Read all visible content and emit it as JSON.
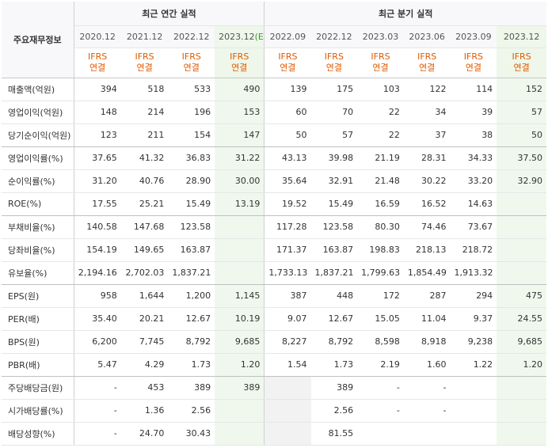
{
  "header": {
    "row_label": "주요재무정보",
    "annual_group": "최근 연간 실적",
    "quarter_group": "최근 분기 실적",
    "annual_periods": [
      "2020.12",
      "2021.12",
      "2022.12",
      "2023.12"
    ],
    "estimate_mark": "(E)",
    "quarter_periods": [
      "2022.09",
      "2022.12",
      "2023.03",
      "2023.06",
      "2023.09",
      "2023.12"
    ],
    "ifrs_line1": "IFRS",
    "ifrs_line2": "연결"
  },
  "rows": [
    {
      "label": "매출액(억원)",
      "values": [
        "394",
        "518",
        "533",
        "490",
        "139",
        "175",
        "103",
        "122",
        "114",
        "152"
      ]
    },
    {
      "label": "영업이익(억원)",
      "values": [
        "148",
        "214",
        "196",
        "153",
        "60",
        "70",
        "22",
        "34",
        "39",
        "57"
      ]
    },
    {
      "label": "당기순이익(억원)",
      "values": [
        "123",
        "211",
        "154",
        "147",
        "50",
        "57",
        "22",
        "37",
        "38",
        "50"
      ]
    },
    {
      "label": "영업이익률(%)",
      "values": [
        "37.65",
        "41.32",
        "36.83",
        "31.22",
        "43.13",
        "39.98",
        "21.19",
        "28.31",
        "34.33",
        "37.50"
      ]
    },
    {
      "label": "순이익률(%)",
      "values": [
        "31.20",
        "40.76",
        "28.90",
        "30.00",
        "35.64",
        "32.91",
        "21.48",
        "30.22",
        "33.20",
        "32.90"
      ]
    },
    {
      "label": "ROE(%)",
      "values": [
        "17.55",
        "25.21",
        "15.49",
        "13.19",
        "19.52",
        "15.49",
        "16.59",
        "16.52",
        "14.63",
        ""
      ]
    },
    {
      "label": "부채비율(%)",
      "values": [
        "140.58",
        "147.68",
        "123.58",
        "",
        "117.28",
        "123.58",
        "80.30",
        "74.46",
        "73.67",
        ""
      ]
    },
    {
      "label": "당좌비율(%)",
      "values": [
        "154.19",
        "149.65",
        "163.87",
        "",
        "171.37",
        "163.87",
        "198.83",
        "218.13",
        "218.72",
        ""
      ]
    },
    {
      "label": "유보율(%)",
      "values": [
        "2,194.16",
        "2,702.03",
        "1,837.21",
        "",
        "1,733.13",
        "1,837.21",
        "1,799.63",
        "1,854.49",
        "1,913.32",
        ""
      ]
    },
    {
      "label": "EPS(원)",
      "values": [
        "958",
        "1,644",
        "1,200",
        "1,145",
        "387",
        "448",
        "172",
        "287",
        "294",
        "475"
      ]
    },
    {
      "label": "PER(배)",
      "values": [
        "35.40",
        "20.21",
        "12.67",
        "10.19",
        "9.07",
        "12.67",
        "15.05",
        "11.04",
        "9.37",
        "24.55"
      ]
    },
    {
      "label": "BPS(원)",
      "values": [
        "6,200",
        "7,745",
        "8,792",
        "9,685",
        "8,227",
        "8,792",
        "8,598",
        "8,918",
        "9,238",
        "9,685"
      ]
    },
    {
      "label": "PBR(배)",
      "values": [
        "5.47",
        "4.29",
        "1.73",
        "1.20",
        "1.54",
        "1.73",
        "2.19",
        "1.60",
        "1.22",
        "1.20"
      ]
    },
    {
      "label": "주당배당금(원)",
      "values": [
        "-",
        "453",
        "389",
        "389",
        "",
        "389",
        "-",
        "-",
        "",
        ""
      ]
    },
    {
      "label": "시가배당률(%)",
      "values": [
        "-",
        "1.36",
        "2.56",
        "",
        "",
        "2.56",
        "-",
        "-",
        "",
        ""
      ]
    },
    {
      "label": "배당성향(%)",
      "values": [
        "-",
        "24.70",
        "30.43",
        "",
        "",
        "81.55",
        "",
        "",
        "",
        ""
      ]
    }
  ]
}
